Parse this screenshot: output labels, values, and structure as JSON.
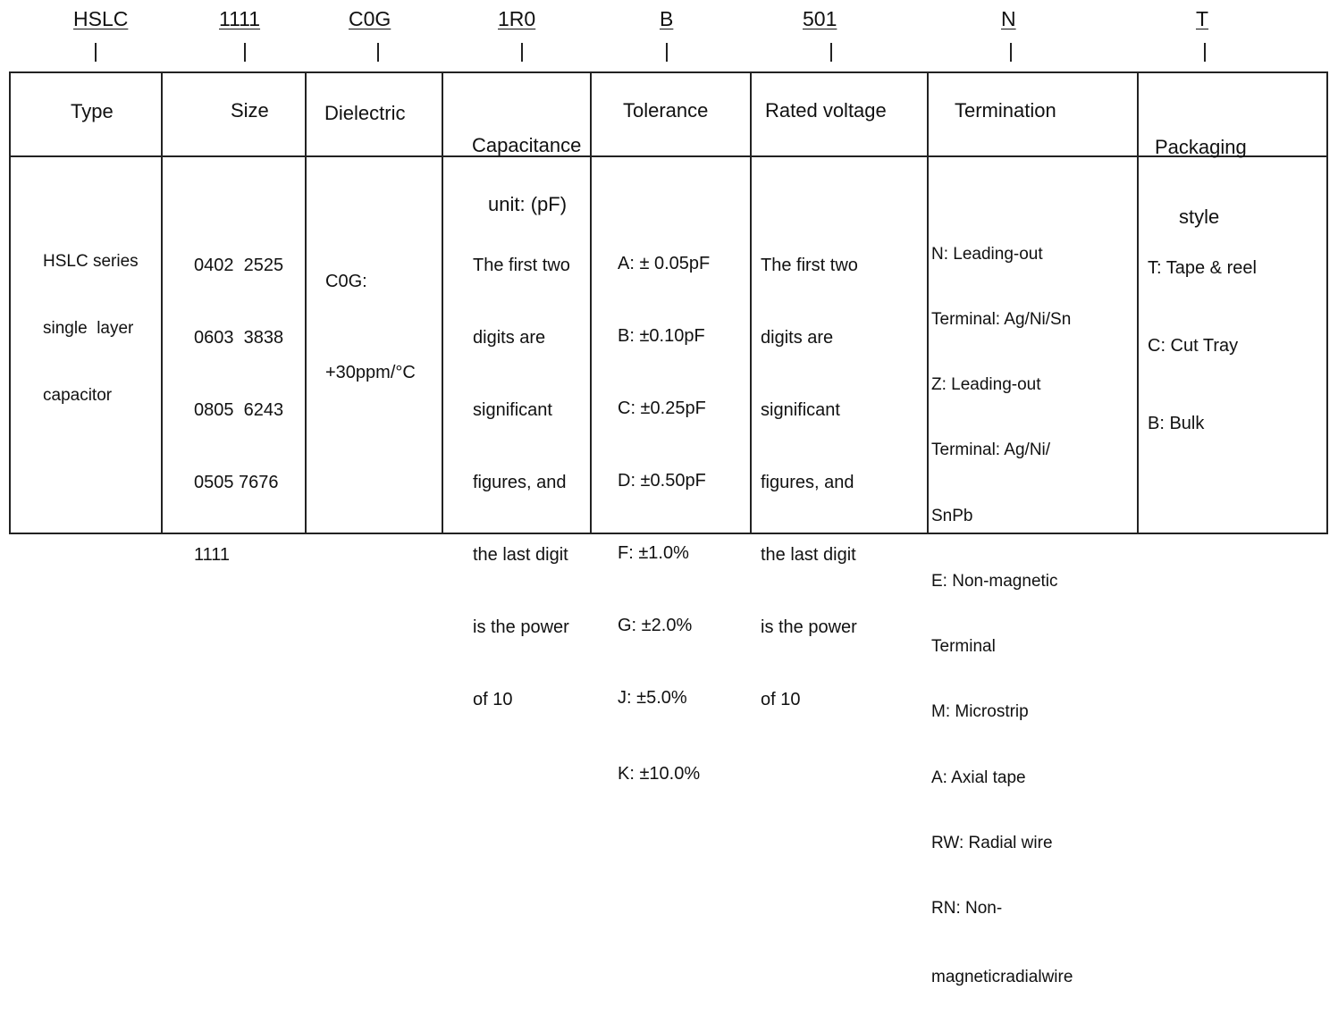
{
  "codes": [
    "HSLC",
    "1111",
    "C0G",
    "1R0",
    "B",
    "501",
    "N",
    "T"
  ],
  "headers": {
    "type": "Type",
    "size": "Size",
    "dielectric": "Dielectric",
    "capacitance_1": "Capacitance",
    "capacitance_2": "unit: (pF)",
    "tolerance": "Tolerance",
    "rated_voltage": "Rated voltage",
    "termination": "Termination",
    "packaging_1": "Packaging",
    "packaging_2": "style"
  },
  "type_lines": [
    "HSLC series",
    "single  layer",
    "capacitor"
  ],
  "size_lines": [
    "0402  2525",
    "0603  3838",
    "0805  6243",
    "0505 7676",
    "1111"
  ],
  "dielectric_lines": [
    "C0G:",
    "+30ppm/°C"
  ],
  "capacitance_lines": [
    "The first two",
    "digits are",
    "significant",
    "figures, and",
    "the last digit",
    "is the power",
    "of 10"
  ],
  "tolerance_lines": [
    "A: ± 0.05pF",
    "B: ±0.10pF",
    "C: ±0.25pF",
    "D: ±0.50pF",
    "F: ±1.0%",
    "G: ±2.0%",
    "J: ±5.0%",
    "K: ±10.0%"
  ],
  "voltage_lines": [
    "The first two",
    "digits are",
    "significant",
    "figures, and",
    "the last digit",
    "is the power",
    "of 10"
  ],
  "termination_lines": [
    "N: Leading-out",
    "Terminal: Ag/Ni/Sn",
    "Z: Leading-out",
    "Terminal: Ag/Ni/",
    "SnPb",
    "E: Non-magnetic",
    "Terminal",
    "M: Microstrip",
    "A: Axial tape",
    "RW: Radial wire",
    "RN: Non-",
    "magneticradialwire"
  ],
  "packaging_lines": [
    "T: Tape & reel",
    "C: Cut Tray",
    "B: Bulk"
  ]
}
